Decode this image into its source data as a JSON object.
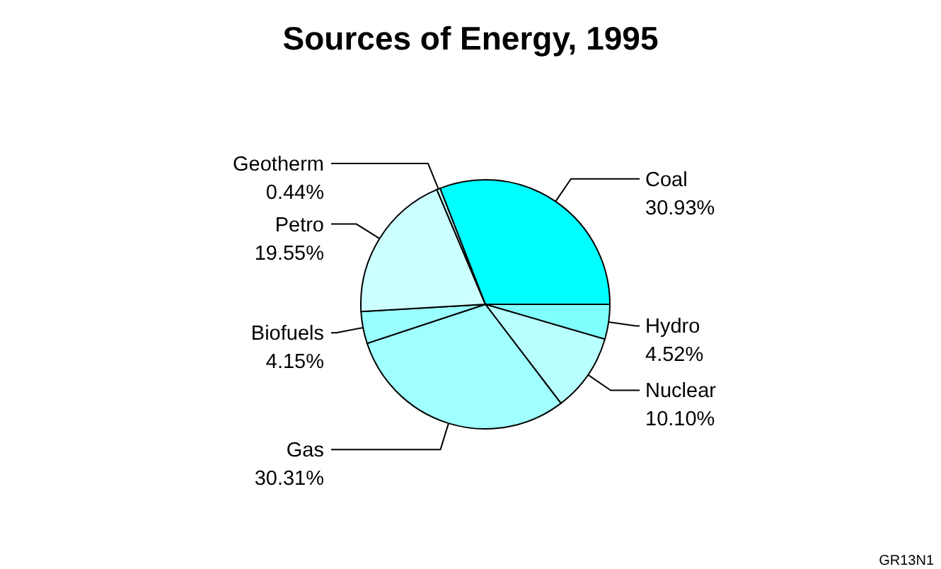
{
  "chart_data": {
    "type": "pie",
    "title": "Sources of Energy, 1995",
    "categories": [
      "Coal",
      "Hydro",
      "Nuclear",
      "Gas",
      "Biofuels",
      "Petro",
      "Geotherm"
    ],
    "values": [
      30.93,
      4.52,
      10.1,
      30.31,
      4.15,
      19.55,
      0.44
    ],
    "colors": [
      "#00ffff",
      "#80ffff",
      "#b8ffff",
      "#a0ffff",
      "#99ffff",
      "#ccffff",
      "#c0ffff"
    ],
    "value_labels": [
      "30.93%",
      "4.52%",
      "10.10%",
      "30.31%",
      "4.15%",
      "19.55%",
      "0.44%"
    ],
    "legend": false,
    "annotations": [
      "GR13N1"
    ]
  }
}
